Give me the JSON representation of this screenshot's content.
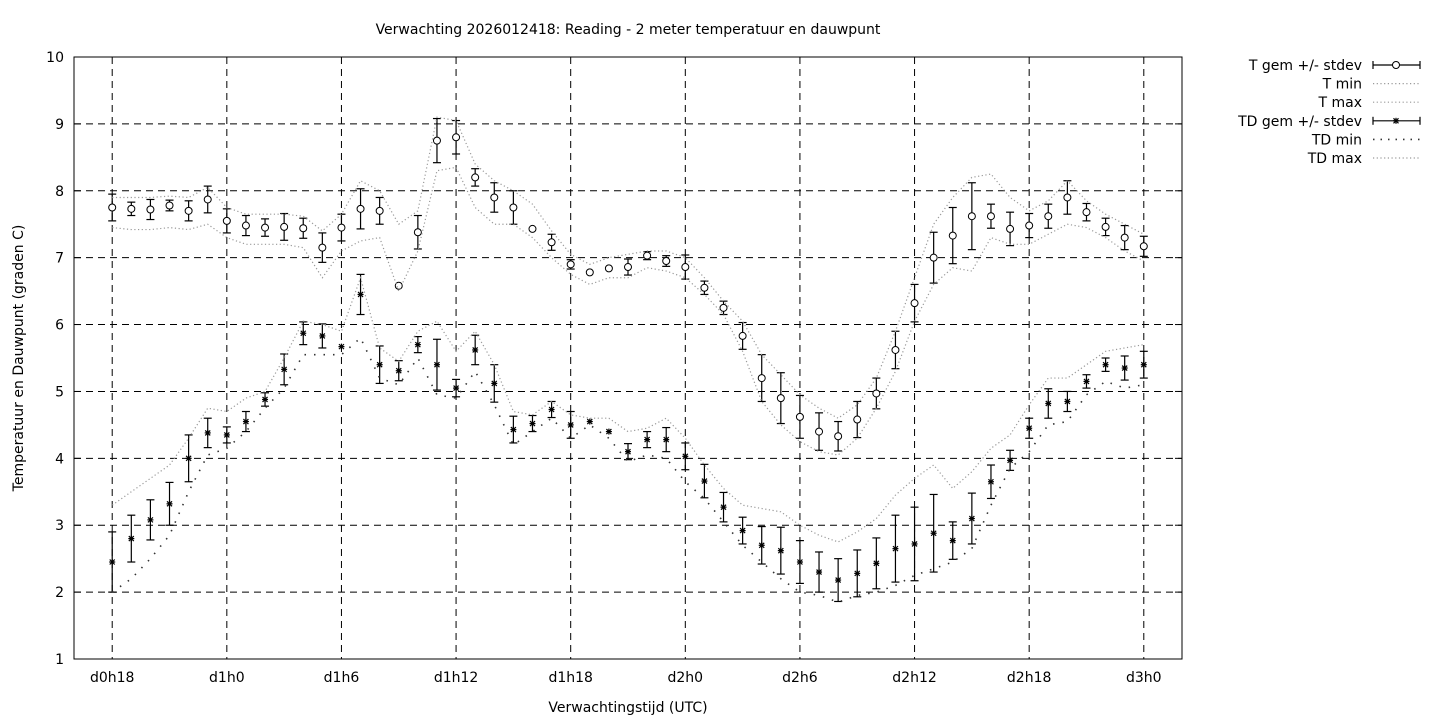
{
  "chart_data": {
    "type": "line",
    "title": "Verwachting 2026012418: Reading - 2 meter temperatuur en dauwpunt",
    "xlabel": "Verwachtingstijd (UTC)",
    "ylabel": "Temperatuur en Dauwpunt (graden C)",
    "xlim_hours": [
      16,
      74
    ],
    "ylim": [
      1,
      10
    ],
    "grid": true,
    "legend_position": "outside-top-right",
    "x_ticks": [
      {
        "hour": 18,
        "label": "d0h18"
      },
      {
        "hour": 24,
        "label": "d1h0"
      },
      {
        "hour": 30,
        "label": "d1h6"
      },
      {
        "hour": 36,
        "label": "d1h12"
      },
      {
        "hour": 42,
        "label": "d1h18"
      },
      {
        "hour": 48,
        "label": "d2h0"
      },
      {
        "hour": 54,
        "label": "d2h6"
      },
      {
        "hour": 60,
        "label": "d2h12"
      },
      {
        "hour": 66,
        "label": "d2h18"
      },
      {
        "hour": 72,
        "label": "d3h0"
      }
    ],
    "y_ticks": [
      "1",
      "2",
      "3",
      "4",
      "5",
      "6",
      "7",
      "8",
      "9",
      "10"
    ],
    "x_hours_start": 18,
    "x_hours_step": 1,
    "series": [
      {
        "name": "T gem +/- stdev",
        "kind": "errorbar",
        "marker": "circle",
        "values": [
          7.75,
          7.73,
          7.72,
          7.78,
          7.7,
          7.87,
          7.55,
          7.48,
          7.45,
          7.46,
          7.44,
          7.15,
          7.45,
          7.73,
          7.7,
          6.58,
          7.38,
          8.75,
          8.8,
          8.2,
          7.9,
          7.75,
          7.43,
          7.23,
          6.9,
          6.78,
          6.84,
          6.86,
          7.03,
          6.95,
          6.86,
          6.55,
          6.25,
          5.83,
          5.2,
          4.9,
          4.62,
          4.4,
          4.33,
          4.58,
          4.97,
          5.62,
          6.32,
          7.0,
          7.33,
          7.62,
          7.62,
          7.43,
          7.48,
          7.62,
          7.9,
          7.68,
          7.46,
          7.3,
          7.17
        ],
        "stdev": [
          0.2,
          0.1,
          0.15,
          0.08,
          0.15,
          0.2,
          0.18,
          0.15,
          0.13,
          0.2,
          0.15,
          0.22,
          0.2,
          0.3,
          0.2,
          0,
          0.25,
          0.33,
          0.25,
          0.13,
          0.22,
          0.25,
          0,
          0.12,
          0.07,
          0,
          0,
          0.12,
          0.06,
          0.08,
          0.18,
          0.1,
          0.1,
          0.2,
          0.35,
          0.38,
          0.32,
          0.28,
          0.22,
          0.27,
          0.23,
          0.28,
          0.28,
          0.38,
          0.42,
          0.5,
          0.18,
          0.25,
          0.18,
          0.18,
          0.25,
          0.13,
          0.13,
          0.18,
          0.15
        ]
      },
      {
        "name": "T min",
        "kind": "dotted",
        "values": [
          7.45,
          7.42,
          7.42,
          7.45,
          7.42,
          7.5,
          7.3,
          7.2,
          7.2,
          7.2,
          7.15,
          6.7,
          7.1,
          7.25,
          7.3,
          6.5,
          7.1,
          8.3,
          8.35,
          7.75,
          7.5,
          7.5,
          7.3,
          7.0,
          6.75,
          6.6,
          6.7,
          6.7,
          6.85,
          6.8,
          6.7,
          6.45,
          6.15,
          5.6,
          4.85,
          4.5,
          4.25,
          4.1,
          4.05,
          4.3,
          4.75,
          5.3,
          6.05,
          6.6,
          6.85,
          6.8,
          7.3,
          7.2,
          7.2,
          7.35,
          7.5,
          7.45,
          7.3,
          7.1,
          6.95
        ]
      },
      {
        "name": "T max",
        "kind": "dotted",
        "values": [
          7.9,
          7.9,
          7.9,
          7.92,
          7.9,
          8.05,
          7.75,
          7.65,
          7.65,
          7.65,
          7.62,
          7.4,
          7.65,
          8.15,
          8.0,
          7.5,
          7.7,
          9.1,
          9.05,
          8.4,
          8.15,
          8.0,
          7.8,
          7.4,
          7.05,
          6.9,
          7.0,
          7.05,
          7.1,
          7.1,
          7.0,
          6.7,
          6.35,
          6.05,
          5.55,
          5.25,
          4.95,
          4.75,
          4.6,
          4.8,
          5.2,
          5.9,
          6.7,
          7.5,
          7.9,
          8.2,
          8.25,
          7.9,
          7.7,
          7.85,
          8.15,
          7.85,
          7.65,
          7.5,
          7.35
        ]
      },
      {
        "name": "TD gem +/- stdev",
        "kind": "errorbar",
        "marker": "star",
        "values": [
          2.45,
          2.8,
          3.08,
          3.32,
          4.0,
          4.38,
          4.35,
          4.55,
          4.88,
          5.33,
          5.87,
          5.83,
          5.67,
          6.45,
          5.4,
          5.31,
          5.7,
          5.4,
          5.05,
          5.62,
          5.12,
          4.43,
          4.52,
          4.73,
          4.5,
          4.55,
          4.4,
          4.1,
          4.28,
          4.28,
          4.03,
          3.66,
          3.27,
          2.92,
          2.7,
          2.62,
          2.45,
          2.3,
          2.18,
          2.28,
          2.43,
          2.65,
          2.72,
          2.88,
          2.77,
          3.1,
          3.65,
          3.97,
          4.45,
          4.82,
          4.85,
          5.15,
          5.4,
          5.35,
          5.4
        ],
        "stdev": [
          0.45,
          0.35,
          0.3,
          0.32,
          0.35,
          0.22,
          0.12,
          0.15,
          0.1,
          0.23,
          0.17,
          0.18,
          0,
          0.3,
          0.28,
          0.15,
          0.12,
          0.38,
          0.13,
          0.22,
          0.28,
          0.2,
          0.12,
          0.12,
          0.2,
          0,
          0,
          0.12,
          0.12,
          0.18,
          0.2,
          0.25,
          0.22,
          0.2,
          0.28,
          0.35,
          0.32,
          0.3,
          0.32,
          0.35,
          0.38,
          0.5,
          0.55,
          0.58,
          0.28,
          0.38,
          0.25,
          0.15,
          0.15,
          0.22,
          0.15,
          0.1,
          0.1,
          0.18,
          0.2
        ]
      },
      {
        "name": "TD min",
        "kind": "dotted-sparse",
        "values": [
          2.0,
          2.2,
          2.5,
          2.85,
          3.5,
          4.05,
          4.15,
          4.4,
          4.75,
          5.05,
          5.55,
          5.55,
          5.55,
          5.8,
          5.2,
          5.1,
          5.5,
          4.95,
          4.9,
          5.3,
          4.8,
          4.2,
          4.4,
          4.6,
          4.3,
          4.5,
          4.3,
          3.95,
          4.05,
          4.0,
          3.65,
          3.4,
          3.05,
          2.7,
          2.45,
          2.2,
          2.0,
          1.95,
          1.85,
          1.95,
          2.0,
          2.1,
          2.25,
          2.35,
          2.45,
          2.65,
          3.3,
          3.85,
          4.1,
          4.5,
          4.55,
          4.95,
          5.15,
          5.05,
          5.1
        ]
      },
      {
        "name": "TD max",
        "kind": "dotted",
        "values": [
          3.3,
          3.5,
          3.7,
          3.9,
          4.3,
          4.75,
          4.7,
          4.9,
          5.0,
          5.5,
          6.05,
          6.0,
          5.9,
          6.7,
          5.65,
          5.45,
          5.9,
          6.05,
          5.6,
          5.9,
          5.4,
          4.7,
          4.65,
          4.85,
          4.65,
          4.6,
          4.6,
          4.4,
          4.45,
          4.6,
          4.3,
          3.9,
          3.55,
          3.3,
          3.25,
          3.2,
          3.0,
          2.85,
          2.75,
          2.9,
          3.1,
          3.45,
          3.7,
          3.9,
          3.55,
          3.8,
          4.15,
          4.35,
          4.8,
          5.2,
          5.2,
          5.4,
          5.6,
          5.65,
          5.7
        ]
      }
    ]
  }
}
